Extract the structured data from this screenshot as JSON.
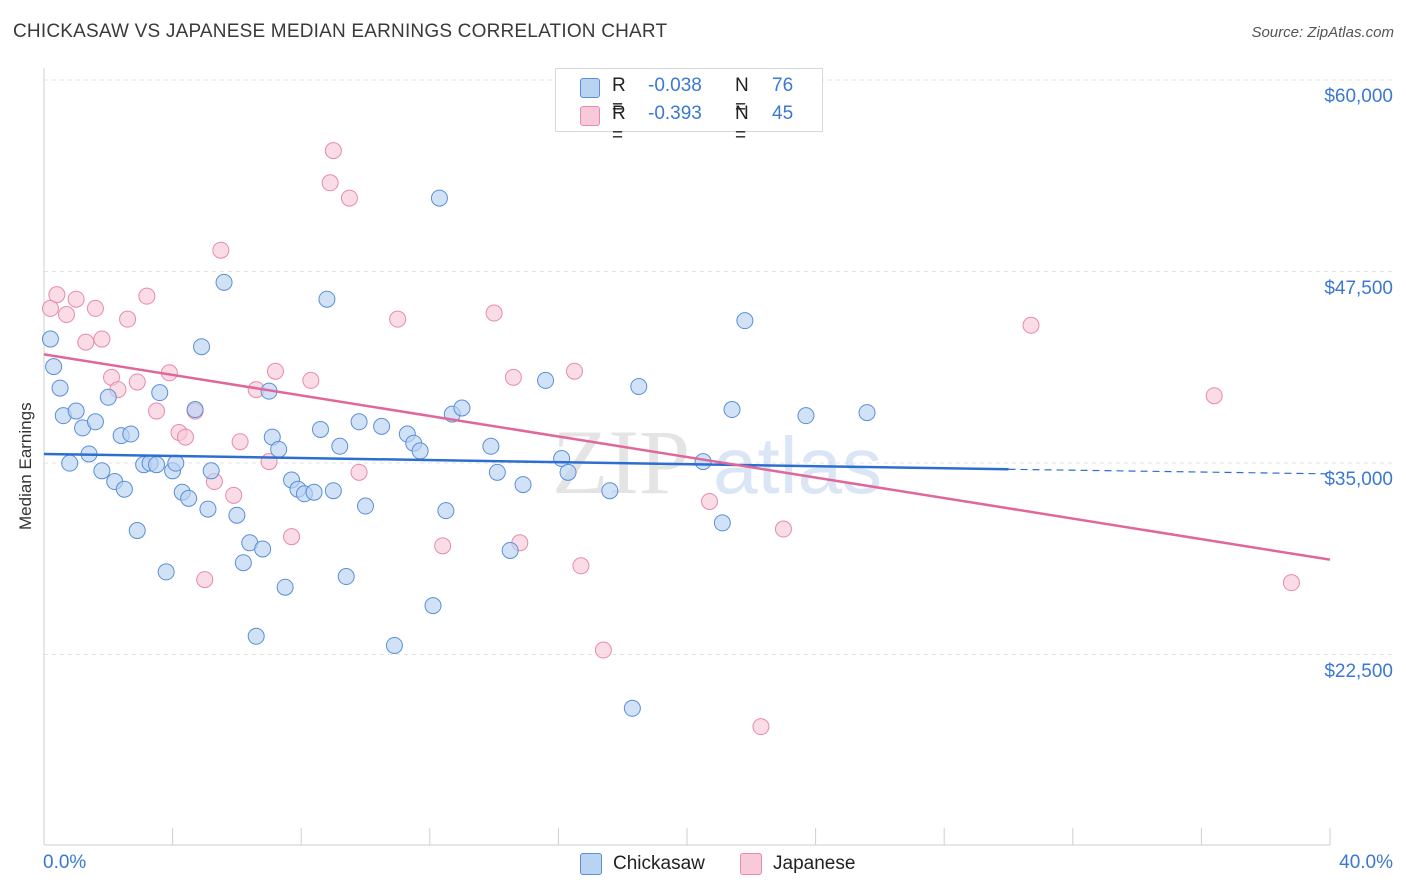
{
  "title": "CHICKASAW VS JAPANESE MEDIAN EARNINGS CORRELATION CHART",
  "source": "Source: ZipAtlas.com",
  "watermark": {
    "zip": "ZIP",
    "atlas": "atlas"
  },
  "legend": {
    "rows": [
      {
        "r_label": "R =",
        "r_value": "-0.038",
        "n_label": "N =",
        "n_value": "76"
      },
      {
        "r_label": "R =",
        "r_value": "-0.393",
        "n_label": "N =",
        "n_value": "45"
      }
    ]
  },
  "x_ticks": {
    "left": "0.0%",
    "right": "40.0%"
  },
  "colors": {
    "chickasaw_fill": "#b9d3f3",
    "chickasaw_stroke": "#5b8fd6",
    "chickasaw_line": "#2d6fcf",
    "japanese_fill": "#f8c9d8",
    "japanese_stroke": "#e88aab",
    "japanese_line": "#e0679a",
    "tick_text": "#3b78d4",
    "grid": "#e3e3e3"
  },
  "chart_data": {
    "type": "scatter",
    "title": "CHICKASAW VS JAPANESE MEDIAN EARNINGS CORRELATION CHART",
    "xlabel": "",
    "ylabel": "Median Earnings",
    "xlim": [
      0,
      40
    ],
    "ylim": [
      12000,
      62000
    ],
    "y_ticks": [
      {
        "value": 22500,
        "label": "$22,500"
      },
      {
        "value": 35000,
        "label": "$35,000"
      },
      {
        "value": 47500,
        "label": "$47,500"
      },
      {
        "value": 60000,
        "label": "$60,000"
      }
    ],
    "x_tick_labels": [
      "0.0%",
      "40.0%"
    ],
    "grid": true,
    "legend_position": "top-center",
    "series": [
      {
        "name": "Chickasaw",
        "r": -0.038,
        "n": 76,
        "trend": {
          "x": [
            0,
            30
          ],
          "y": [
            36700,
            35700
          ],
          "dashed_to": [
            40,
            35400
          ]
        },
        "points": [
          [
            0.2,
            44200
          ],
          [
            0.3,
            42400
          ],
          [
            0.5,
            41000
          ],
          [
            0.6,
            39200
          ],
          [
            0.8,
            36100
          ],
          [
            1.0,
            39500
          ],
          [
            1.2,
            38400
          ],
          [
            1.4,
            36700
          ],
          [
            1.6,
            38800
          ],
          [
            1.8,
            35600
          ],
          [
            2.0,
            40400
          ],
          [
            2.2,
            34900
          ],
          [
            2.4,
            37900
          ],
          [
            2.5,
            34400
          ],
          [
            2.7,
            38000
          ],
          [
            2.9,
            31700
          ],
          [
            3.1,
            36000
          ],
          [
            3.3,
            36100
          ],
          [
            3.5,
            36000
          ],
          [
            3.6,
            40700
          ],
          [
            3.8,
            29000
          ],
          [
            4.0,
            35600
          ],
          [
            4.1,
            36100
          ],
          [
            4.3,
            34200
          ],
          [
            4.5,
            33800
          ],
          [
            4.7,
            39600
          ],
          [
            4.9,
            43700
          ],
          [
            5.1,
            33100
          ],
          [
            5.2,
            35600
          ],
          [
            5.6,
            47900
          ],
          [
            6.0,
            32700
          ],
          [
            6.2,
            29600
          ],
          [
            6.4,
            30900
          ],
          [
            6.6,
            24800
          ],
          [
            6.8,
            30500
          ],
          [
            7.0,
            40800
          ],
          [
            7.1,
            37800
          ],
          [
            7.3,
            37000
          ],
          [
            7.5,
            28000
          ],
          [
            7.7,
            35000
          ],
          [
            7.9,
            34400
          ],
          [
            8.1,
            34100
          ],
          [
            8.4,
            34200
          ],
          [
            8.6,
            38300
          ],
          [
            8.8,
            46800
          ],
          [
            9.0,
            34300
          ],
          [
            9.2,
            37200
          ],
          [
            9.4,
            28700
          ],
          [
            9.8,
            38800
          ],
          [
            10.0,
            33300
          ],
          [
            10.5,
            38500
          ],
          [
            10.9,
            24200
          ],
          [
            11.3,
            38000
          ],
          [
            11.5,
            37400
          ],
          [
            11.7,
            36900
          ],
          [
            12.1,
            26800
          ],
          [
            12.3,
            53400
          ],
          [
            12.5,
            33000
          ],
          [
            12.7,
            39300
          ],
          [
            13.0,
            39700
          ],
          [
            13.9,
            37200
          ],
          [
            14.1,
            35500
          ],
          [
            14.5,
            30400
          ],
          [
            14.9,
            34700
          ],
          [
            15.6,
            41500
          ],
          [
            16.1,
            36400
          ],
          [
            16.3,
            35500
          ],
          [
            17.6,
            34300
          ],
          [
            18.3,
            20100
          ],
          [
            18.5,
            41100
          ],
          [
            20.5,
            36200
          ],
          [
            21.1,
            32200
          ],
          [
            21.4,
            39600
          ],
          [
            21.8,
            45400
          ],
          [
            23.7,
            39200
          ],
          [
            25.6,
            39400
          ]
        ]
      },
      {
        "name": "Japanese",
        "r": -0.393,
        "n": 45,
        "trend": {
          "x": [
            0,
            40
          ],
          "y": [
            43200,
            29800
          ]
        },
        "points": [
          [
            0.2,
            46200
          ],
          [
            0.4,
            47100
          ],
          [
            0.7,
            45800
          ],
          [
            1.0,
            46800
          ],
          [
            1.3,
            44000
          ],
          [
            1.6,
            46200
          ],
          [
            1.8,
            44200
          ],
          [
            2.1,
            41700
          ],
          [
            2.3,
            40900
          ],
          [
            2.6,
            45500
          ],
          [
            2.9,
            41400
          ],
          [
            3.2,
            47000
          ],
          [
            3.5,
            39500
          ],
          [
            3.9,
            42000
          ],
          [
            4.2,
            38100
          ],
          [
            4.4,
            37800
          ],
          [
            4.7,
            39500
          ],
          [
            5.0,
            28500
          ],
          [
            5.3,
            34900
          ],
          [
            5.5,
            50000
          ],
          [
            5.9,
            34000
          ],
          [
            6.1,
            37500
          ],
          [
            6.6,
            40900
          ],
          [
            7.0,
            36200
          ],
          [
            7.2,
            42100
          ],
          [
            7.7,
            31300
          ],
          [
            8.3,
            41500
          ],
          [
            8.9,
            54400
          ],
          [
            9.0,
            56500
          ],
          [
            9.5,
            53400
          ],
          [
            9.8,
            35500
          ],
          [
            11.0,
            45500
          ],
          [
            12.4,
            30700
          ],
          [
            14.0,
            45900
          ],
          [
            14.6,
            41700
          ],
          [
            14.8,
            30900
          ],
          [
            16.5,
            42100
          ],
          [
            16.7,
            29400
          ],
          [
            17.4,
            23900
          ],
          [
            20.7,
            33600
          ],
          [
            22.3,
            18900
          ],
          [
            23.0,
            31800
          ],
          [
            30.7,
            45100
          ],
          [
            36.4,
            40500
          ],
          [
            38.8,
            28300
          ]
        ]
      }
    ]
  }
}
